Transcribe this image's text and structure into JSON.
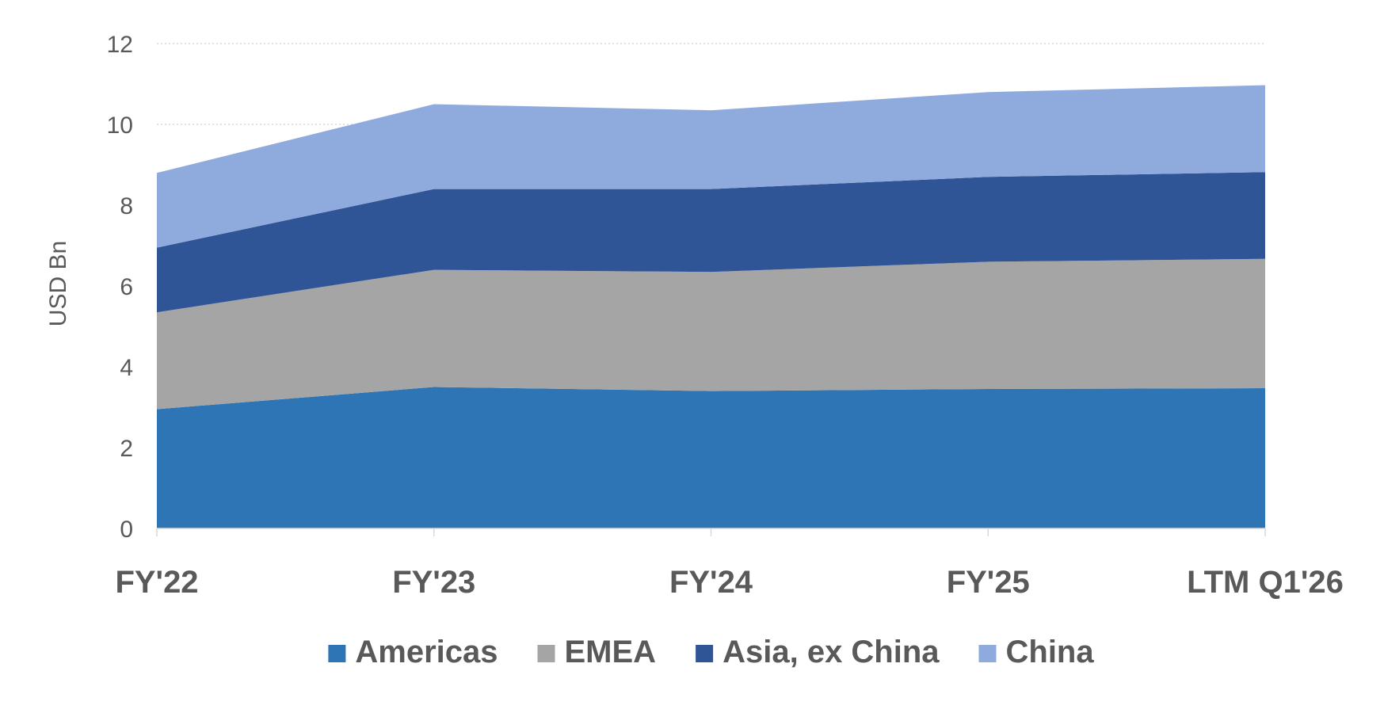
{
  "chart_data": {
    "type": "area",
    "stacked": true,
    "title": "",
    "xlabel": "",
    "ylabel": "USD Bn",
    "categories": [
      "FY'22",
      "FY'23",
      "FY'24",
      "FY'25",
      "LTM Q1'26"
    ],
    "ylim": [
      0,
      12
    ],
    "yticks": [
      0,
      2,
      4,
      6,
      8,
      10,
      12
    ],
    "grid": true,
    "legend_position": "bottom",
    "series": [
      {
        "name": "Americas",
        "color": "#2e75b6",
        "values": [
          2.95,
          3.5,
          3.4,
          3.45,
          3.47
        ]
      },
      {
        "name": "EMEA",
        "color": "#a5a5a5",
        "values": [
          2.4,
          2.9,
          2.95,
          3.15,
          3.2
        ]
      },
      {
        "name": "Asia, ex China",
        "color": "#2f5597",
        "values": [
          1.6,
          2.0,
          2.05,
          2.1,
          2.15
        ]
      },
      {
        "name": "China",
        "color": "#8faadc",
        "values": [
          1.85,
          2.1,
          1.95,
          2.1,
          2.15
        ]
      }
    ]
  }
}
